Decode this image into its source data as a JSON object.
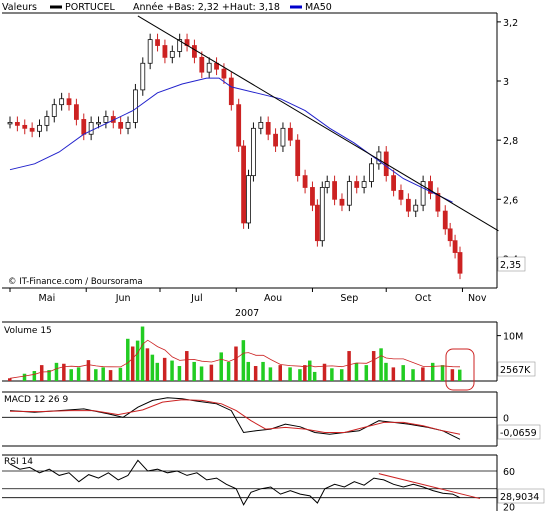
{
  "legend": {
    "prefix": "Valeurs",
    "symbol": "PORTUCEL",
    "range_text": "Année +Bas: 2,32 +Haut: 3,18",
    "ma_label": "MA50",
    "colors": {
      "symbol": "#000000",
      "ma": "#0000cc"
    }
  },
  "watermark": "© IT-Finance.com / Boursorama",
  "colors": {
    "up_candle": "#111111",
    "down_candle": "#cc2222",
    "vol_up": "#22cc22",
    "vol_down": "#cc2222",
    "ma": "#2222cc",
    "macd": "#000000",
    "macd_signal": "#cc2222",
    "rsi": "#000000",
    "trendline": "#000000",
    "rsi_trend": "#cc2222",
    "highlight": "#cc2222"
  },
  "chart_data": [
    {
      "type": "candlestick",
      "name": "price",
      "x_ticks": [
        "Mai",
        "Jun",
        "Jul",
        "Aou",
        "Sep",
        "Oct",
        "Nov"
      ],
      "x_year": "2007",
      "y_ticks": [
        "2,4",
        "2,6",
        "2,8",
        "3",
        "3,2"
      ],
      "ylim": [
        2.3,
        3.23
      ],
      "last_value_label": "2,35",
      "close_points": [
        [
          0,
          2.86
        ],
        [
          3,
          2.85
        ],
        [
          6,
          2.84
        ],
        [
          9,
          2.83
        ],
        [
          12,
          2.85
        ],
        [
          15,
          2.88
        ],
        [
          18,
          2.92
        ],
        [
          21,
          2.94
        ],
        [
          24,
          2.92
        ],
        [
          27,
          2.87
        ],
        [
          30,
          2.82
        ],
        [
          33,
          2.86
        ],
        [
          36,
          2.86
        ],
        [
          39,
          2.88
        ],
        [
          42,
          2.86
        ],
        [
          45,
          2.84
        ],
        [
          48,
          2.86
        ],
        [
          51,
          2.97
        ],
        [
          54,
          3.06
        ],
        [
          57,
          3.14
        ],
        [
          60,
          3.12
        ],
        [
          63,
          3.08
        ],
        [
          66,
          3.1
        ],
        [
          69,
          3.14
        ],
        [
          72,
          3.12
        ],
        [
          75,
          3.08
        ],
        [
          78,
          3.03
        ],
        [
          81,
          3.06
        ],
        [
          84,
          3.04
        ],
        [
          87,
          3.01
        ],
        [
          90,
          2.92
        ],
        [
          93,
          2.78
        ],
        [
          95,
          2.52
        ],
        [
          97,
          2.68
        ],
        [
          99,
          2.84
        ],
        [
          102,
          2.86
        ],
        [
          105,
          2.82
        ],
        [
          108,
          2.78
        ],
        [
          111,
          2.84
        ],
        [
          114,
          2.8
        ],
        [
          117,
          2.68
        ],
        [
          120,
          2.64
        ],
        [
          123,
          2.58
        ],
        [
          125,
          2.46
        ],
        [
          127,
          2.64
        ],
        [
          129,
          2.66
        ],
        [
          132,
          2.6
        ],
        [
          135,
          2.58
        ],
        [
          138,
          2.66
        ],
        [
          141,
          2.64
        ],
        [
          144,
          2.66
        ],
        [
          147,
          2.72
        ],
        [
          150,
          2.76
        ],
        [
          153,
          2.68
        ],
        [
          156,
          2.63
        ],
        [
          159,
          2.6
        ],
        [
          162,
          2.56
        ],
        [
          165,
          2.58
        ],
        [
          168,
          2.66
        ],
        [
          171,
          2.62
        ],
        [
          174,
          2.56
        ],
        [
          177,
          2.5
        ],
        [
          179,
          2.46
        ],
        [
          181,
          2.42
        ],
        [
          183,
          2.35
        ]
      ],
      "overlays": {
        "ma50_points": [
          [
            0,
            2.7
          ],
          [
            10,
            2.72
          ],
          [
            20,
            2.76
          ],
          [
            30,
            2.82
          ],
          [
            40,
            2.86
          ],
          [
            50,
            2.9
          ],
          [
            60,
            2.96
          ],
          [
            70,
            2.99
          ],
          [
            80,
            3.01
          ],
          [
            85,
            3.01
          ],
          [
            90,
            2.98
          ],
          [
            100,
            2.96
          ],
          [
            110,
            2.94
          ],
          [
            120,
            2.9
          ],
          [
            130,
            2.84
          ],
          [
            140,
            2.79
          ],
          [
            150,
            2.73
          ],
          [
            160,
            2.67
          ],
          [
            170,
            2.63
          ],
          [
            180,
            2.59
          ]
        ],
        "trendline": [
          [
            52,
            3.22
          ],
          [
            184,
            2.5
          ]
        ]
      }
    },
    {
      "type": "bar",
      "name": "volume",
      "title": "Volume 15",
      "y_ticks": [
        "10M"
      ],
      "ylim": [
        0,
        13
      ],
      "last_value_label": "2567K",
      "values_by_day": [
        [
          0,
          0.6
        ],
        [
          6,
          1.6
        ],
        [
          10,
          2.2
        ],
        [
          13,
          3.5
        ],
        [
          16,
          2.4
        ],
        [
          19,
          4.0
        ],
        [
          22,
          3.8
        ],
        [
          25,
          2.6
        ],
        [
          28,
          3.0
        ],
        [
          32,
          4.6
        ],
        [
          35,
          2.6
        ],
        [
          38,
          3.0
        ],
        [
          41,
          2.4
        ],
        [
          45,
          2.9
        ],
        [
          48,
          9.3
        ],
        [
          50,
          7.6
        ],
        [
          52,
          8.9
        ],
        [
          54,
          12.0
        ],
        [
          56,
          7.2
        ],
        [
          58,
          5.8
        ],
        [
          60,
          4.0
        ],
        [
          63,
          5.1
        ],
        [
          66,
          4.5
        ],
        [
          69,
          3.3
        ],
        [
          72,
          6.6
        ],
        [
          75,
          4.2
        ],
        [
          78,
          3.2
        ],
        [
          82,
          3.6
        ],
        [
          86,
          6.3
        ],
        [
          89,
          4.2
        ],
        [
          92,
          7.6
        ],
        [
          95,
          9.0
        ],
        [
          97,
          4.2
        ],
        [
          100,
          3.3
        ],
        [
          103,
          4.2
        ],
        [
          106,
          3.0
        ],
        [
          110,
          3.5
        ],
        [
          114,
          3.0
        ],
        [
          118,
          2.6
        ],
        [
          120,
          3.5
        ],
        [
          122,
          4.5
        ],
        [
          124,
          2.0
        ],
        [
          128,
          3.8
        ],
        [
          131,
          2.8
        ],
        [
          135,
          2.6
        ],
        [
          138,
          6.6
        ],
        [
          141,
          4.0
        ],
        [
          145,
          3.5
        ],
        [
          148,
          6.6
        ],
        [
          151,
          7.2
        ],
        [
          153,
          4.0
        ],
        [
          156,
          3.0
        ],
        [
          160,
          3.5
        ],
        [
          164,
          2.6
        ],
        [
          168,
          3.0
        ],
        [
          172,
          4.0
        ],
        [
          176,
          3.5
        ],
        [
          180,
          2.6
        ],
        [
          183,
          2.5
        ]
      ]
    },
    {
      "type": "line",
      "name": "macd",
      "title": "MACD 12 26 9",
      "y_ticks": [
        "0"
      ],
      "ylim": [
        -0.085,
        0.075
      ],
      "last_value_label": "-0,0659",
      "series": [
        {
          "points": [
            [
              0,
              0.02
            ],
            [
              10,
              0.015
            ],
            [
              20,
              0.02
            ],
            [
              30,
              0.025
            ],
            [
              40,
              0.01
            ],
            [
              46,
              0.0
            ],
            [
              52,
              0.03
            ],
            [
              58,
              0.05
            ],
            [
              64,
              0.058
            ],
            [
              70,
              0.055
            ],
            [
              76,
              0.048
            ],
            [
              84,
              0.04
            ],
            [
              90,
              0.02
            ],
            [
              95,
              -0.045
            ],
            [
              100,
              -0.04
            ],
            [
              106,
              -0.035
            ],
            [
              112,
              -0.02
            ],
            [
              118,
              -0.028
            ],
            [
              124,
              -0.045
            ],
            [
              130,
              -0.05
            ],
            [
              136,
              -0.045
            ],
            [
              142,
              -0.04
            ],
            [
              150,
              -0.01
            ],
            [
              156,
              -0.015
            ],
            [
              162,
              -0.02
            ],
            [
              170,
              -0.03
            ],
            [
              176,
              -0.04
            ],
            [
              183,
              -0.065
            ]
          ]
        },
        {
          "points": [
            [
              0,
              0.018
            ],
            [
              12,
              0.017
            ],
            [
              24,
              0.02
            ],
            [
              34,
              0.02
            ],
            [
              44,
              0.008
            ],
            [
              54,
              0.022
            ],
            [
              62,
              0.045
            ],
            [
              70,
              0.052
            ],
            [
              78,
              0.05
            ],
            [
              86,
              0.04
            ],
            [
              92,
              0.02
            ],
            [
              98,
              -0.01
            ],
            [
              104,
              -0.035
            ],
            [
              112,
              -0.03
            ],
            [
              120,
              -0.035
            ],
            [
              128,
              -0.045
            ],
            [
              136,
              -0.045
            ],
            [
              144,
              -0.03
            ],
            [
              152,
              -0.015
            ],
            [
              160,
              -0.015
            ],
            [
              168,
              -0.025
            ],
            [
              176,
              -0.04
            ],
            [
              183,
              -0.05
            ]
          ]
        }
      ]
    },
    {
      "type": "line",
      "name": "rsi",
      "title": "RSI 14",
      "y_ticks": [
        "60",
        "20"
      ],
      "ylim": [
        15,
        78
      ],
      "last_value_label": "28,9034",
      "levels": [
        60,
        40,
        30
      ],
      "series": [
        {
          "points": [
            [
              0,
              68
            ],
            [
              4,
              62
            ],
            [
              8,
              64
            ],
            [
              12,
              58
            ],
            [
              16,
              62
            ],
            [
              20,
              55
            ],
            [
              24,
              58
            ],
            [
              28,
              48
            ],
            [
              32,
              56
            ],
            [
              36,
              52
            ],
            [
              40,
              58
            ],
            [
              44,
              50
            ],
            [
              48,
              55
            ],
            [
              52,
              72
            ],
            [
              56,
              60
            ],
            [
              60,
              62
            ],
            [
              64,
              58
            ],
            [
              68,
              60
            ],
            [
              72,
              55
            ],
            [
              76,
              58
            ],
            [
              80,
              50
            ],
            [
              84,
              52
            ],
            [
              88,
              45
            ],
            [
              92,
              40
            ],
            [
              95,
              22
            ],
            [
              98,
              36
            ],
            [
              102,
              40
            ],
            [
              106,
              42
            ],
            [
              110,
              34
            ],
            [
              114,
              38
            ],
            [
              118,
              34
            ],
            [
              122,
              32
            ],
            [
              125,
              24
            ],
            [
              128,
              40
            ],
            [
              132,
              45
            ],
            [
              136,
              42
            ],
            [
              140,
              48
            ],
            [
              144,
              44
            ],
            [
              148,
              52
            ],
            [
              152,
              50
            ],
            [
              156,
              45
            ],
            [
              160,
              42
            ],
            [
              164,
              45
            ],
            [
              168,
              42
            ],
            [
              172,
              38
            ],
            [
              176,
              35
            ],
            [
              180,
              34
            ],
            [
              183,
              30
            ]
          ]
        }
      ],
      "overlays": {
        "trendline": [
          [
            150,
            57
          ],
          [
            196,
            29
          ]
        ]
      }
    }
  ]
}
